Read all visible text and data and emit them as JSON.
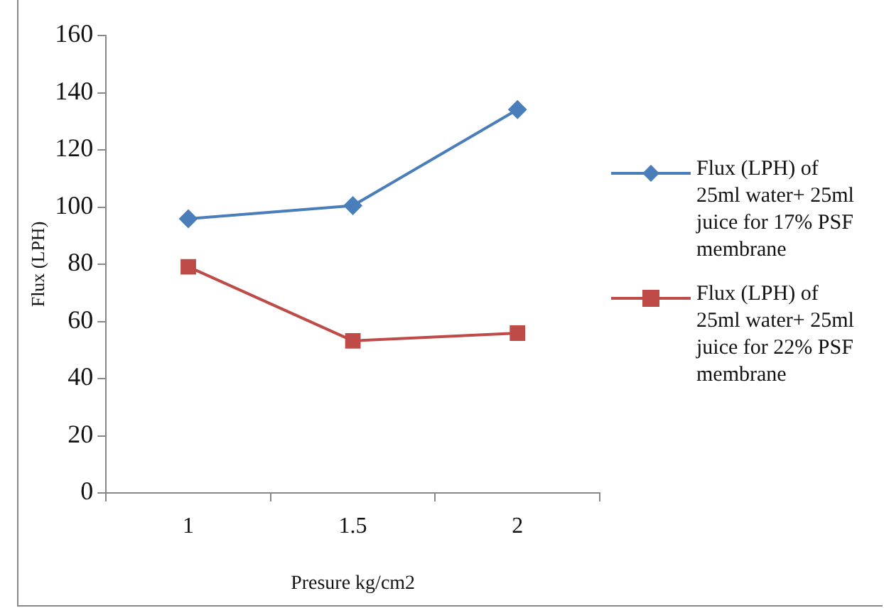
{
  "chart_data": {
    "type": "line",
    "xlabel": "Presure kg/cm2",
    "ylabel": "Flux (LPH)",
    "categories": [
      "1",
      "1.5",
      "2"
    ],
    "series": [
      {
        "name": "Flux (LPH) of 25ml water+ 25ml juice for 17% PSF membrane",
        "color": "#4a7ebb",
        "marker": "diamond",
        "values": [
          95.9,
          100.5,
          134.1
        ]
      },
      {
        "name": "Flux (LPH) of 25ml water+ 25ml juice for 22% PSF membrane",
        "color": "#be4b48",
        "marker": "square",
        "values": [
          79.1,
          53.2,
          55.9
        ]
      }
    ],
    "ylim": [
      0,
      160
    ],
    "yticks": [
      0,
      20,
      40,
      60,
      80,
      100,
      120,
      140,
      160
    ],
    "grid": false,
    "legend": "right",
    "line_style": "solid"
  }
}
